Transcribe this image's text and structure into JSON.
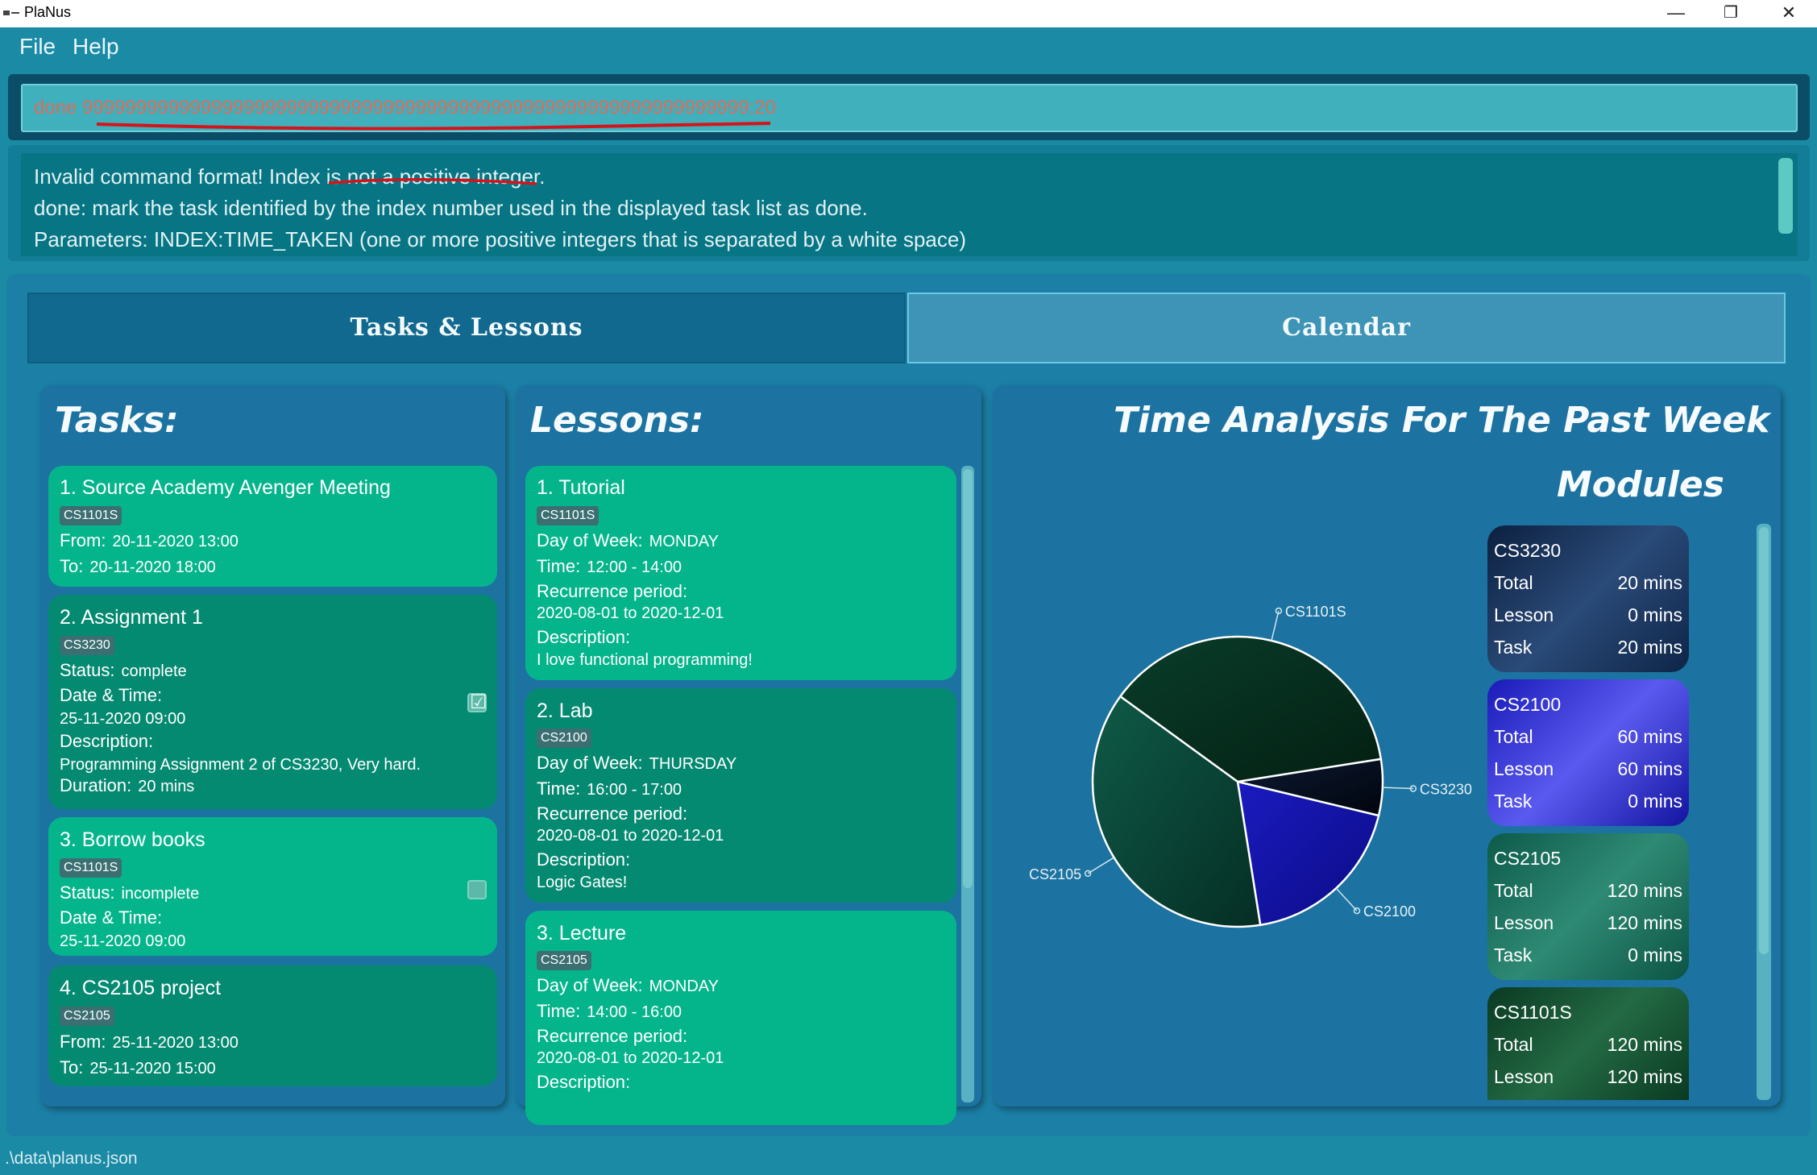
{
  "window": {
    "title": "PlaNus",
    "minimize": "—",
    "restore": "❐",
    "close": "✕"
  },
  "menu": {
    "file": "File",
    "help": "Help"
  },
  "command": {
    "text": "done 99999999999999999999999999999999999999999999999999999999999999:20"
  },
  "result": {
    "line1": "Invalid command format! Index is not a positive integer.",
    "line2": "done: mark the task identified by the index number used in the displayed task list as done.",
    "line3": "Parameters: INDEX:TIME_TAKEN (one or more positive integers that is separated by a white space)"
  },
  "tabs": {
    "tasks": "Tasks & Lessons",
    "calendar": "Calendar"
  },
  "tasks_panel": {
    "title": "Tasks:",
    "items": [
      {
        "title": "1.  Source Academy Avenger Meeting",
        "tag": "CS1101S",
        "from_label": "From:",
        "from": "20-11-2020 13:00",
        "to_label": "To:",
        "to": "20-11-2020 18:00"
      },
      {
        "title": "2.  Assignment 1",
        "tag": "CS3230",
        "status_label": "Status:",
        "status": "complete",
        "dt_label": "Date & Time:",
        "dt": "25-11-2020 09:00",
        "desc_label": "Description:",
        "desc": "Programming Assignment 2 of CS3230, Very hard.",
        "dur_label": "Duration:",
        "dur": "20 mins",
        "checked": "☑"
      },
      {
        "title": "3.  Borrow books",
        "tag": "CS1101S",
        "status_label": "Status:",
        "status": "incomplete",
        "dt_label": "Date & Time:",
        "dt": "25-11-2020 09:00"
      },
      {
        "title": "4.  CS2105 project",
        "tag": "CS2105",
        "from_label": "From:",
        "from": "25-11-2020 13:00",
        "to_label": "To:",
        "to": "25-11-2020 15:00"
      }
    ]
  },
  "lessons_panel": {
    "title": "Lessons:",
    "items": [
      {
        "title": "1.  Tutorial",
        "tag": "CS1101S",
        "day_label": "Day of Week:",
        "day": "MONDAY",
        "time_label": "Time:",
        "time": "12:00 - 14:00",
        "rec_label": "Recurrence period:",
        "rec": "2020-08-01 to 2020-12-01",
        "desc_label": "Description:",
        "desc": "I love functional programming!"
      },
      {
        "title": "2.  Lab",
        "tag": "CS2100",
        "day_label": "Day of Week:",
        "day": "THURSDAY",
        "time_label": "Time:",
        "time": "16:00 - 17:00",
        "rec_label": "Recurrence period:",
        "rec": "2020-08-01 to 2020-12-01",
        "desc_label": "Description:",
        "desc": "Logic Gates!"
      },
      {
        "title": "3.  Lecture",
        "tag": "CS2105",
        "day_label": "Day of Week:",
        "day": "MONDAY",
        "time_label": "Time:",
        "time": "14:00 - 16:00",
        "rec_label": "Recurrence period:",
        "rec": "2020-08-01 to 2020-12-01",
        "desc_label": "Description:"
      }
    ]
  },
  "analysis": {
    "title": "Time Analysis For The Past Week",
    "modules_title": "Modules",
    "labels": {
      "total": "Total",
      "lesson": "Lesson",
      "task": "Task"
    },
    "modules": [
      {
        "name": "CS3230",
        "total": "20 mins",
        "lesson": "0 mins",
        "task": "20 mins"
      },
      {
        "name": "CS2100",
        "total": "60 mins",
        "lesson": "60 mins",
        "task": "0 mins"
      },
      {
        "name": "CS2105",
        "total": "120 mins",
        "lesson": "120 mins",
        "task": "0 mins"
      },
      {
        "name": "CS1101S",
        "total": "120 mins",
        "lesson": "120 mins"
      }
    ]
  },
  "chart_data": {
    "type": "pie",
    "labels": [
      "CS1101S",
      "CS3230",
      "CS2100",
      "CS2105"
    ],
    "values": [
      120,
      20,
      60,
      120
    ],
    "colors": [
      "#05301e",
      "#020c1a",
      "#1414a8",
      "#0a4a3c"
    ]
  },
  "status": {
    "path": ".\\data\\planus.json"
  }
}
